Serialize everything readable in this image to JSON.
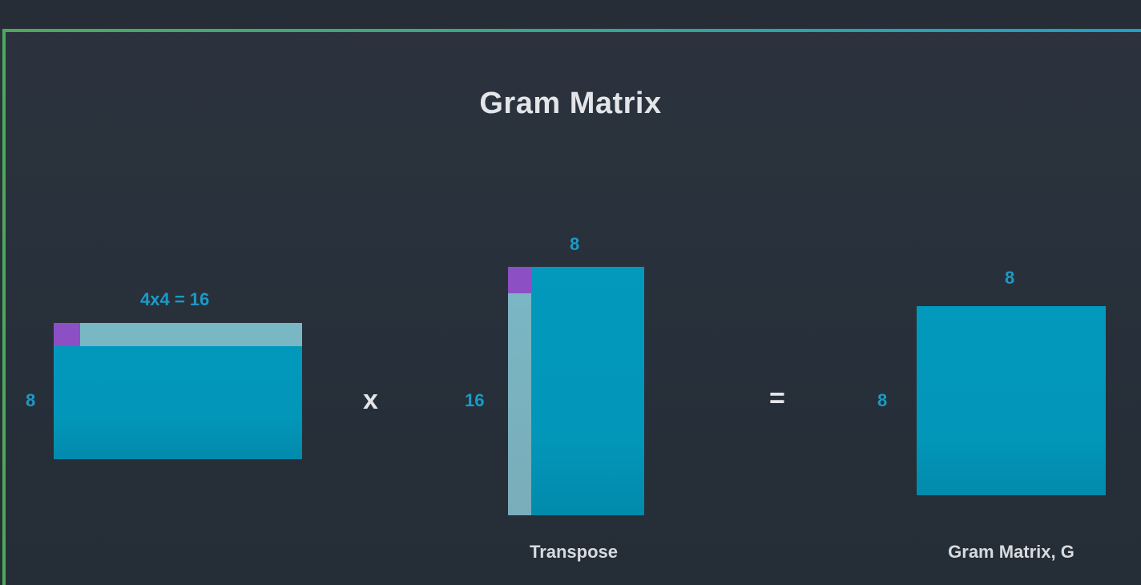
{
  "title": "Gram Matrix",
  "colors": {
    "matrix": "#0299bd",
    "highlight": "#7ab7c5",
    "cell": "#8c4fc4",
    "dimension_label": "#1b9ac6",
    "frame_green": "#4fa85a",
    "frame_blue": "#1ea0c4"
  },
  "matrix_a": {
    "rows_label": "8",
    "cols_label": "4x4 = 16"
  },
  "operator_multiply": "x",
  "matrix_b": {
    "rows_label": "16",
    "cols_label": "8",
    "caption": "Transpose"
  },
  "operator_equals": "=",
  "matrix_g": {
    "rows_label": "8",
    "cols_label": "8",
    "caption": "Gram Matrix, G"
  }
}
